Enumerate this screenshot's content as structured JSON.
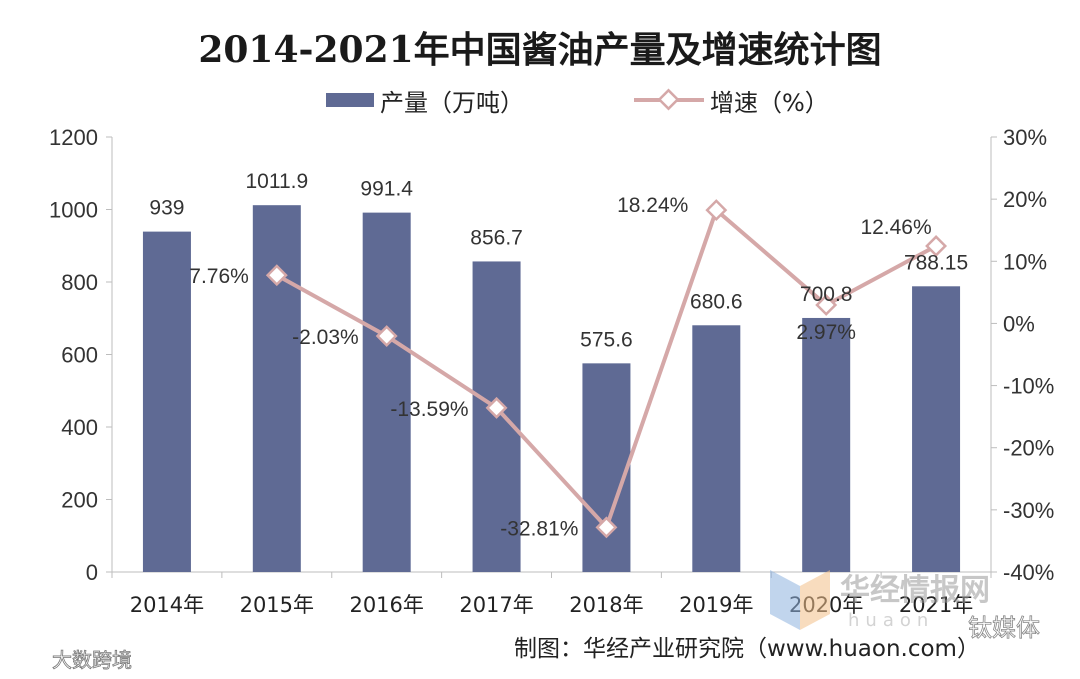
{
  "chart_data": {
    "type": "bar",
    "title": "2014-2021年中国酱油产量及增速统计图",
    "categories": [
      "2014年",
      "2015年",
      "2016年",
      "2017年",
      "2018年",
      "2019年",
      "2020年",
      "2021年"
    ],
    "series": [
      {
        "name": "产量（万吨）",
        "type": "bar",
        "axis": "left",
        "color": "#5f6a94",
        "values": [
          939,
          1011.9,
          991.4,
          856.7,
          575.6,
          680.6,
          700.8,
          788.15
        ],
        "labels": [
          "939",
          "1011.9",
          "991.4",
          "856.7",
          "575.6",
          "680.6",
          "700.8",
          "788.15"
        ]
      },
      {
        "name": "增速（%）",
        "type": "line",
        "axis": "right",
        "color": "#d5a8a8",
        "values": [
          null,
          7.76,
          -2.03,
          -13.59,
          -32.81,
          18.24,
          2.97,
          12.46
        ],
        "labels": [
          "",
          "7.76%",
          "-2.03%",
          "-13.59%",
          "-32.81%",
          "18.24%",
          "2.97%",
          "12.46%"
        ]
      }
    ],
    "y_left": {
      "min": 0,
      "max": 1200,
      "ticks": [
        "0",
        "200",
        "400",
        "600",
        "800",
        "1000",
        "1200"
      ]
    },
    "y_right": {
      "min": -40,
      "max": 30,
      "ticks": [
        "-40%",
        "-30%",
        "-20%",
        "-10%",
        "0%",
        "10%",
        "20%",
        "30%"
      ]
    },
    "legend": "top-center",
    "grid": false,
    "source": "制图：华经产业研究院（www.huaon.com）",
    "watermarks": {
      "brand": "华经情报网",
      "brand_url": "huaon",
      "media": "钛媒体",
      "corner": "大数跨境"
    }
  }
}
